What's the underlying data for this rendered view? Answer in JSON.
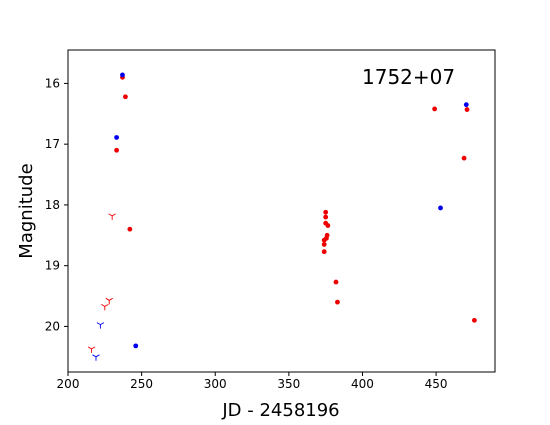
{
  "chart_data": {
    "type": "scatter",
    "annotation": "1752+07",
    "xlabel": "JD - 2458196",
    "ylabel": "Magnitude",
    "xlim": [
      200,
      490
    ],
    "ylim": [
      20.75,
      15.45
    ],
    "y_inverted": true,
    "xticks": [
      200,
      250,
      300,
      350,
      400,
      450
    ],
    "yticks": [
      16,
      17,
      18,
      19,
      20
    ],
    "grid": false,
    "colors": {
      "red": "#ee0000",
      "blue": "#0000ee"
    },
    "detections_red": [
      {
        "x": 237,
        "y": 15.9
      },
      {
        "x": 239,
        "y": 16.22
      },
      {
        "x": 233,
        "y": 17.1
      },
      {
        "x": 242,
        "y": 18.4
      },
      {
        "x": 375,
        "y": 18.12
      },
      {
        "x": 375,
        "y": 18.2
      },
      {
        "x": 375,
        "y": 18.3
      },
      {
        "x": 376.5,
        "y": 18.34
      },
      {
        "x": 376,
        "y": 18.5
      },
      {
        "x": 375.5,
        "y": 18.55
      },
      {
        "x": 374,
        "y": 18.58
      },
      {
        "x": 374,
        "y": 18.65
      },
      {
        "x": 374,
        "y": 18.77
      },
      {
        "x": 382,
        "y": 19.27
      },
      {
        "x": 383,
        "y": 19.6
      },
      {
        "x": 449,
        "y": 16.42
      },
      {
        "x": 471,
        "y": 16.43
      },
      {
        "x": 469,
        "y": 17.23
      },
      {
        "x": 476,
        "y": 19.9
      }
    ],
    "detections_blue": [
      {
        "x": 237,
        "y": 15.86
      },
      {
        "x": 233,
        "y": 16.89
      },
      {
        "x": 453,
        "y": 18.05
      },
      {
        "x": 470.5,
        "y": 16.35
      },
      {
        "x": 246,
        "y": 20.32
      }
    ],
    "upper_limits_red": [
      {
        "x": 230,
        "y": 18.18
      },
      {
        "x": 228,
        "y": 19.57
      },
      {
        "x": 225,
        "y": 19.67
      },
      {
        "x": 216,
        "y": 20.37
      }
    ],
    "upper_limits_blue": [
      {
        "x": 222,
        "y": 19.97
      },
      {
        "x": 219,
        "y": 20.5
      }
    ]
  }
}
